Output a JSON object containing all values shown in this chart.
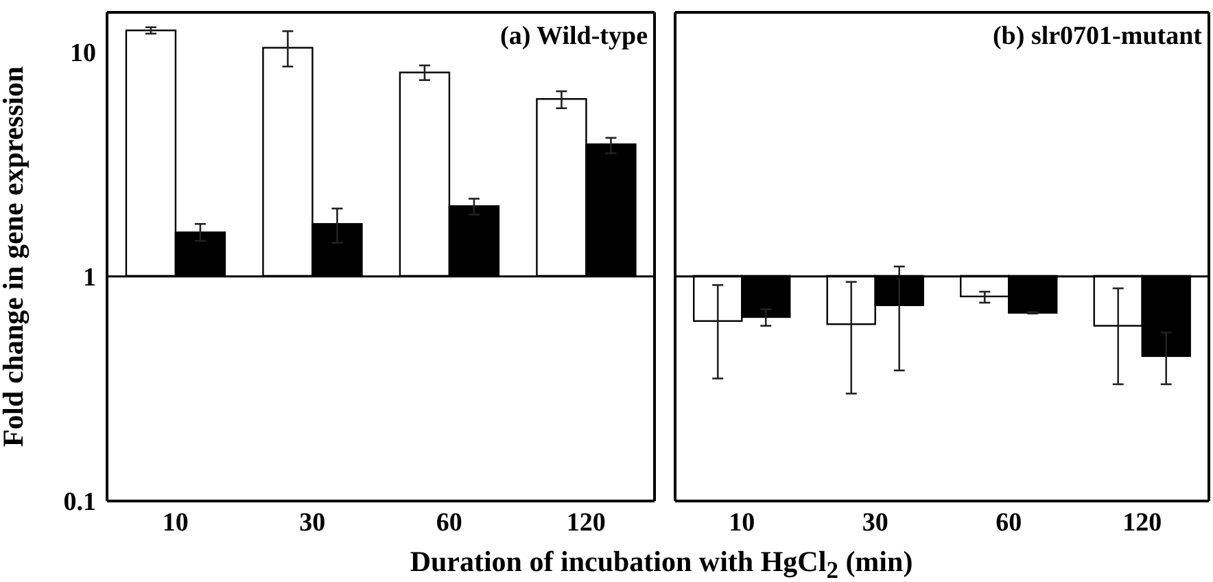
{
  "chart_data": [
    {
      "type": "bar",
      "ylabel": "Fold change in gene expression",
      "xlabel": "Duration of incubation with HgCl$_{2}$ (min)",
      "annotations": [
        "(a) Wild-type"
      ],
      "categories": [
        "10",
        "30",
        "60",
        "120"
      ],
      "log": true,
      "ylim": [
        0.1,
        15
      ],
      "yticks": [
        0.1,
        1,
        10
      ],
      "ref_lines": [
        {
          "axis": "y",
          "value": 1,
          "color": "#000000"
        }
      ],
      "series": [
        {
          "color": "#ffffff",
          "base": [
            1,
            1,
            1,
            1
          ],
          "values": [
            11.3,
            9.3,
            7.0,
            5.1
          ],
          "errors": [
            [
              11.9,
              12.7
            ],
            [
              8.5,
              12.2
            ],
            [
              7.4,
              8.6
            ],
            [
              5.55,
              6.6
            ]
          ]
        },
        {
          "color": "#000000",
          "base": [
            1,
            1,
            1,
            1
          ],
          "values": [
            0.56,
            0.7,
            1.04,
            2.84
          ],
          "errors": [
            [
              1.43,
              1.7
            ],
            [
              1.4,
              1.99
            ],
            [
              1.87,
              2.2
            ],
            [
              3.5,
              4.1
            ]
          ]
        }
      ]
    },
    {
      "type": "bar",
      "annotations": [
        "(b) slr0701-mutant"
      ],
      "categories": [
        "10",
        "30",
        "60",
        "120"
      ],
      "log": true,
      "ylim": [
        0.1,
        15
      ],
      "yticks": [
        0.1,
        1,
        10
      ],
      "tick_labels": "x",
      "ref_lines": [
        {
          "axis": "y",
          "value": 1,
          "color": "#000000"
        }
      ],
      "series": [
        {
          "color": "#ffffff",
          "base": [
            1,
            1,
            1,
            1
          ],
          "values": [
            -0.37,
            -0.39,
            -0.19,
            -0.4
          ],
          "errors": [
            [
              0.35,
              0.91
            ],
            [
              0.3,
              0.94
            ],
            [
              0.76,
              0.85
            ],
            [
              0.33,
              0.88
            ]
          ]
        },
        {
          "color": "#000000",
          "base": [
            1,
            1,
            1,
            1
          ],
          "values": [
            -0.344,
            -0.26,
            -0.315,
            -0.56
          ],
          "errors": [
            [
              0.6,
              0.71
            ],
            [
              0.38,
              1.1
            ],
            [
              0.68,
              0.69
            ],
            [
              0.33,
              0.56
            ]
          ]
        }
      ]
    }
  ]
}
